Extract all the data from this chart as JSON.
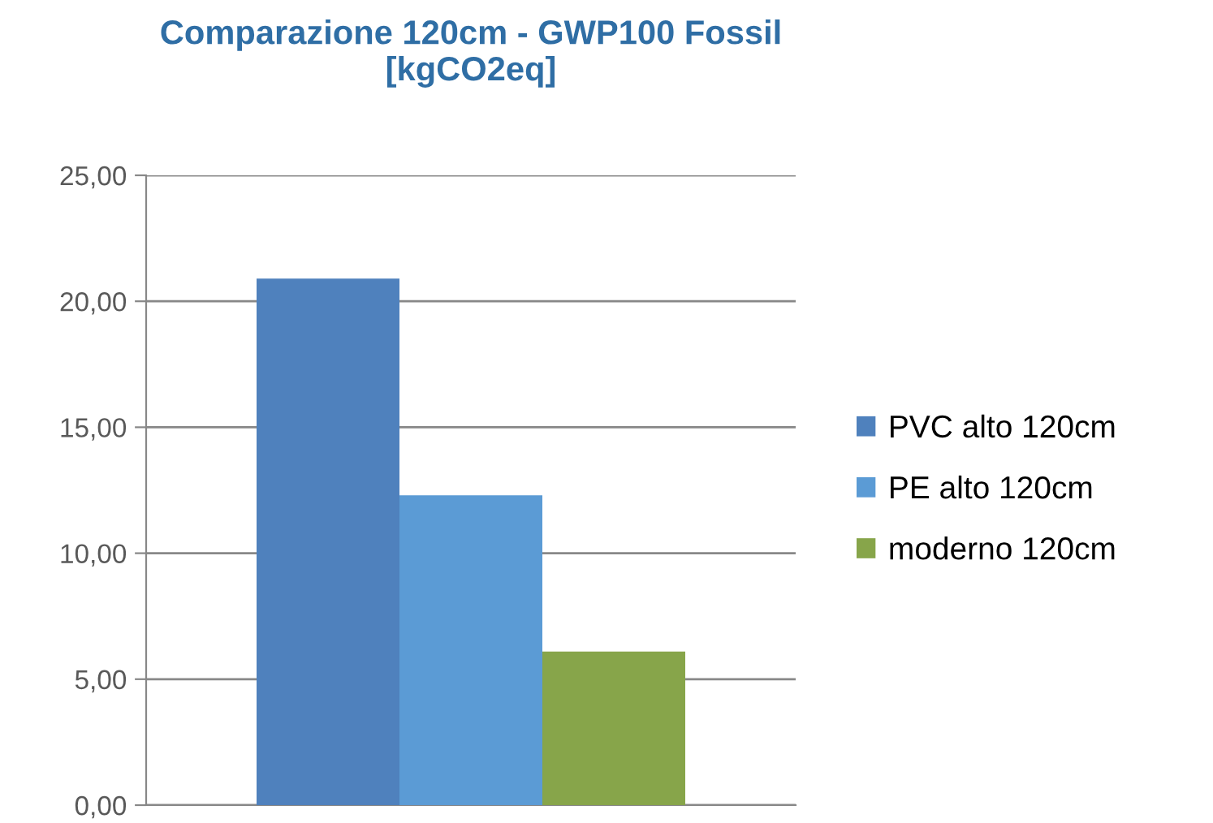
{
  "chart_data": {
    "type": "bar",
    "title": "Comparazione 120cm - GWP100 Fossil\n[kgCO2eq]",
    "categories": [
      null
    ],
    "series": [
      {
        "name": "PVC alto 120cm",
        "color": "#4f81bd",
        "values": [
          20.9
        ]
      },
      {
        "name": "PE alto 120cm",
        "color": "#5b9bd5",
        "values": [
          12.3
        ]
      },
      {
        "name": "moderno 120cm",
        "color": "#87a54a",
        "values": [
          6.1
        ]
      }
    ],
    "ylim": [
      0,
      25
    ],
    "yticks": [
      {
        "value": 0,
        "label": "0,00"
      },
      {
        "value": 5,
        "label": "5,00"
      },
      {
        "value": 10,
        "label": "10,00"
      },
      {
        "value": 15,
        "label": "15,00"
      },
      {
        "value": 20,
        "label": "20,00"
      },
      {
        "value": 25,
        "label": "25,00"
      }
    ],
    "grid": "y",
    "legend": "right"
  }
}
